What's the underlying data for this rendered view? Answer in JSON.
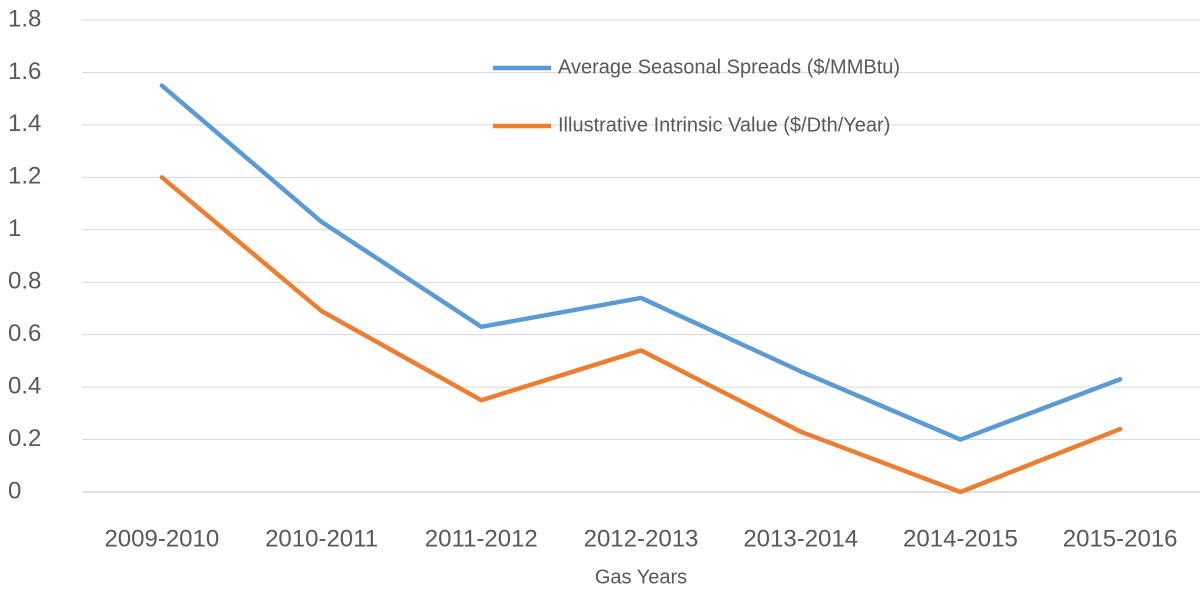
{
  "chart_data": {
    "type": "line",
    "x_label": "Gas Years",
    "categories": [
      "2009-2010",
      "2010-2011",
      "2011-2012",
      "2012-2013",
      "2013-2014",
      "2014-2015",
      "2015-2016"
    ],
    "series": [
      {
        "name": "Average Seasonal Spreads ($/MMBtu)",
        "color": "#5b9bd5",
        "values": [
          1.55,
          1.03,
          0.63,
          0.74,
          0.46,
          0.2,
          0.43
        ]
      },
      {
        "name": "Illustrative Intrinsic Value ($/Dth/Year)",
        "color": "#ed7d31",
        "values": [
          1.2,
          0.69,
          0.35,
          0.54,
          0.23,
          0,
          0.24
        ]
      }
    ],
    "ylim": [
      0,
      1.8
    ],
    "yticks": [
      0,
      0.2,
      0.4,
      0.6,
      0.8,
      1,
      1.2,
      1.4,
      1.6,
      1.8
    ],
    "grid": true,
    "legend": "top"
  }
}
